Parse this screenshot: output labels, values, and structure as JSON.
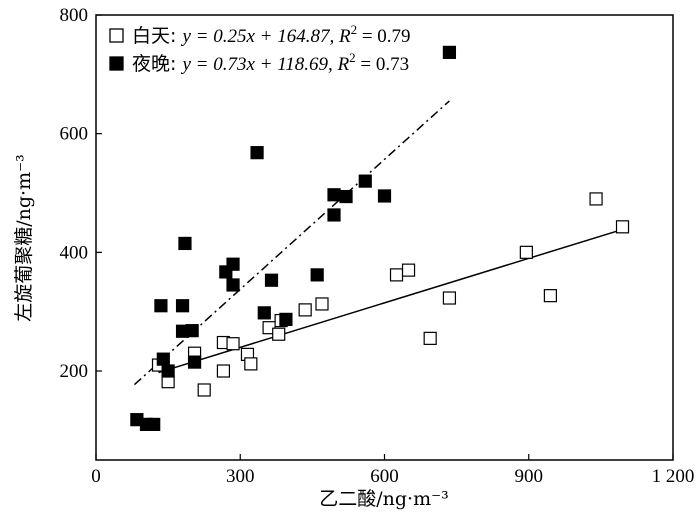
{
  "chart_data": {
    "type": "scatter",
    "xlabel": "乙二酸/ng·m⁻³",
    "ylabel": "左旋葡聚糖/ng·m⁻³",
    "xlim": [
      0,
      1200
    ],
    "ylim": [
      50,
      800
    ],
    "xticks": [
      0,
      300,
      600,
      900,
      1200
    ],
    "xtick_labels": [
      "0",
      "300",
      "600",
      "900",
      "1 200"
    ],
    "yticks": [
      200,
      400,
      600,
      800
    ],
    "ytick_labels": [
      "200",
      "400",
      "600",
      "800"
    ],
    "legend_position": "top-left",
    "series": [
      {
        "name": "白天",
        "marker": "open-square",
        "fit_label": {
          "lead": "白天: ",
          "eq": "y = 0.25x + 164.87, ",
          "r2": "R",
          "sup": "2",
          "tail": " = 0.79"
        },
        "fit": {
          "slope": 0.25,
          "intercept": 164.87,
          "x_range": [
            130,
            1095
          ],
          "style": "solid"
        },
        "points": [
          [
            130,
            210
          ],
          [
            150,
            182
          ],
          [
            205,
            230
          ],
          [
            225,
            168
          ],
          [
            265,
            200
          ],
          [
            265,
            248
          ],
          [
            285,
            246
          ],
          [
            315,
            228
          ],
          [
            322,
            212
          ],
          [
            360,
            273
          ],
          [
            380,
            262
          ],
          [
            385,
            285
          ],
          [
            435,
            303
          ],
          [
            470,
            313
          ],
          [
            625,
            362
          ],
          [
            650,
            370
          ],
          [
            695,
            255
          ],
          [
            735,
            323
          ],
          [
            895,
            400
          ],
          [
            945,
            327
          ],
          [
            1040,
            490
          ],
          [
            1095,
            443
          ]
        ]
      },
      {
        "name": "夜晚",
        "marker": "filled-square",
        "fit_label": {
          "lead": "夜晚: ",
          "eq": "y = 0.73x + 118.69, ",
          "r2": "R",
          "sup": "2",
          "tail": " = 0.73"
        },
        "fit": {
          "slope": 0.73,
          "intercept": 118.69,
          "x_range": [
            80,
            735
          ],
          "style": "dash-dot"
        },
        "points": [
          [
            85,
            118
          ],
          [
            105,
            110
          ],
          [
            120,
            110
          ],
          [
            135,
            310
          ],
          [
            140,
            220
          ],
          [
            150,
            200
          ],
          [
            180,
            310
          ],
          [
            180,
            267
          ],
          [
            185,
            415
          ],
          [
            200,
            268
          ],
          [
            205,
            215
          ],
          [
            270,
            367
          ],
          [
            285,
            345
          ],
          [
            285,
            380
          ],
          [
            335,
            568
          ],
          [
            350,
            298
          ],
          [
            365,
            353
          ],
          [
            395,
            287
          ],
          [
            460,
            362
          ],
          [
            495,
            497
          ],
          [
            495,
            463
          ],
          [
            520,
            494
          ],
          [
            560,
            520
          ],
          [
            600,
            495
          ],
          [
            735,
            737
          ]
        ]
      }
    ]
  }
}
